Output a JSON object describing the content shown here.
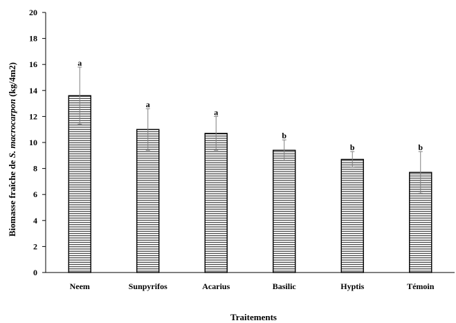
{
  "chart_data": {
    "type": "bar",
    "categories": [
      "Neem",
      "Sunpyrifos",
      "Acarius",
      "Basilic",
      "Hyptis",
      "Témoin"
    ],
    "series": [
      {
        "values": [
          13.6,
          11.0,
          10.7,
          9.4,
          8.7,
          7.7
        ],
        "error": [
          2.2,
          1.6,
          1.3,
          0.8,
          0.6,
          1.6
        ],
        "significance": [
          "a",
          "a",
          "a",
          "b",
          "b",
          "b"
        ]
      }
    ],
    "xlabel": "Traitements",
    "ylabel_prefix": "Biomasse fraîche de ",
    "ylabel_species": "S. macrocarpon",
    "ylabel_suffix": " (kg/4m2)",
    "ylim": [
      0,
      20
    ],
    "yticks": [
      "0",
      "2",
      "4",
      "6",
      "8",
      "10",
      "12",
      "14",
      "16",
      "18",
      "20"
    ],
    "bar_fill": "horizontal-hatch",
    "bar_color": "#000000",
    "error_bar_color": "#7f7f7f",
    "grid": false
  }
}
